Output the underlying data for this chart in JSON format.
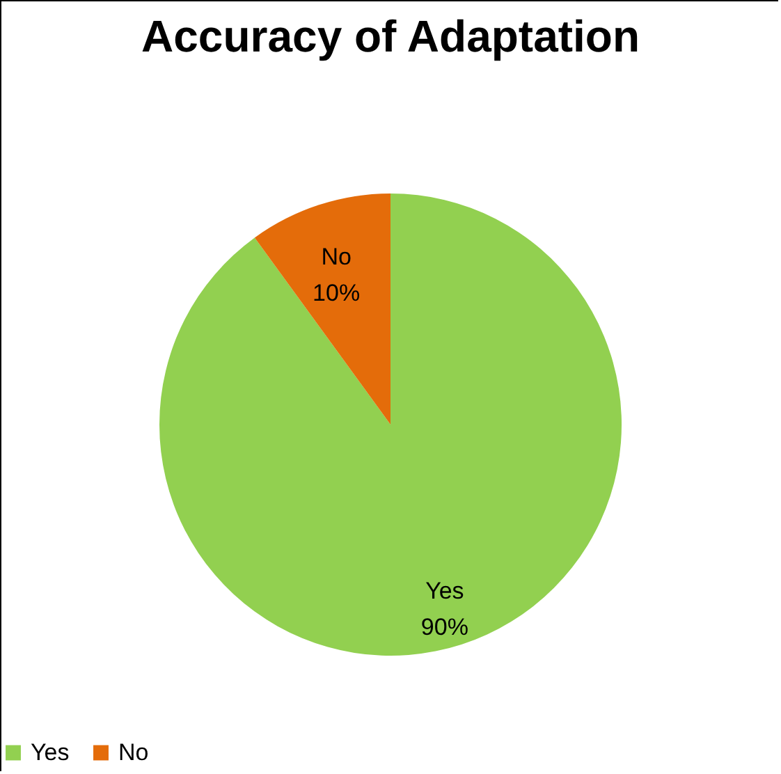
{
  "chart_data": {
    "type": "pie",
    "title": "Accuracy of Adaptation",
    "categories": [
      "Yes",
      "No"
    ],
    "values": [
      90,
      10
    ],
    "colors": [
      "#92d050",
      "#e46c0a"
    ],
    "value_labels": [
      "90%",
      "10%"
    ],
    "legend": "bottom"
  }
}
